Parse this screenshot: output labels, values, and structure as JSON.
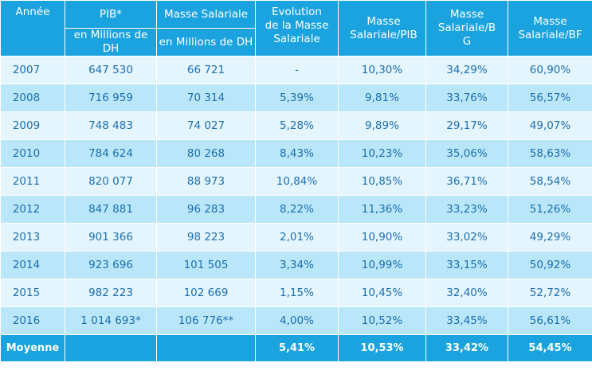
{
  "headers": {
    "annee": "Année",
    "pib": "PIB*",
    "pib_sub": "en Millions de DH",
    "masse": "Masse Salariale",
    "masse_sub": "en Millions de DH",
    "evolution": "Evolution de la Masse Salariale",
    "ms_pib": "Masse Salariale/PIB",
    "ms_bg": "Masse Salariale/B G",
    "ms_bf": "Masse Salariale/BF"
  },
  "rows": [
    {
      "annee": "2007",
      "pib": "647 530",
      "masse": "66 721",
      "evolution": "-",
      "ms_pib": "10,30%",
      "ms_bg": "34,29%",
      "ms_bf": "60,90%"
    },
    {
      "annee": "2008",
      "pib": "716 959",
      "masse": "70 314",
      "evolution": "5,39%",
      "ms_pib": "9,81%",
      "ms_bg": "33,76%",
      "ms_bf": "56,57%"
    },
    {
      "annee": "2009",
      "pib": "748 483",
      "masse": "74 027",
      "evolution": "5,28%",
      "ms_pib": "9,89%",
      "ms_bg": "29,17%",
      "ms_bf": "49,07%"
    },
    {
      "annee": "2010",
      "pib": "784 624",
      "masse": "80 268",
      "evolution": "8,43%",
      "ms_pib": "10,23%",
      "ms_bg": "35,06%",
      "ms_bf": "58,63%"
    },
    {
      "annee": "2011",
      "pib": "820 077",
      "masse": "88 973",
      "evolution": "10,84%",
      "ms_pib": "10,85%",
      "ms_bg": "36,71%",
      "ms_bf": "58,54%"
    },
    {
      "annee": "2012",
      "pib": "847 881",
      "masse": "96 283",
      "evolution": "8,22%",
      "ms_pib": "11,36%",
      "ms_bg": "33,23%",
      "ms_bf": "51,26%"
    },
    {
      "annee": "2013",
      "pib": "901 366",
      "masse": "98 223",
      "evolution": "2,01%",
      "ms_pib": "10,90%",
      "ms_bg": "33,02%",
      "ms_bf": "49,29%"
    },
    {
      "annee": "2014",
      "pib": "923 696",
      "masse": "101 505",
      "evolution": "3,34%",
      "ms_pib": "10,99%",
      "ms_bg": "33,15%",
      "ms_bf": "50,92%"
    },
    {
      "annee": "2015",
      "pib": "982 223",
      "masse": "102 669",
      "evolution": "1,15%",
      "ms_pib": "10,45%",
      "ms_bg": "32,40%",
      "ms_bf": "52,72%"
    },
    {
      "annee": "2016",
      "pib": "1 014 693*",
      "masse": "106 776**",
      "evolution": "4,00%",
      "ms_pib": "10,52%",
      "ms_bg": "33,45%",
      "ms_bf": "56,61%"
    }
  ],
  "footer": {
    "label": "Moyenne",
    "pib": "",
    "masse": "",
    "evolution": "5,41%",
    "ms_pib": "10,53%",
    "ms_bg": "33,42%",
    "ms_bf": "54,45%"
  },
  "colors": {
    "header_bg": "#1aa3de",
    "row_light": "#e5f5fd",
    "row_dark": "#b9e6f8",
    "text": "#1b6fb0"
  }
}
